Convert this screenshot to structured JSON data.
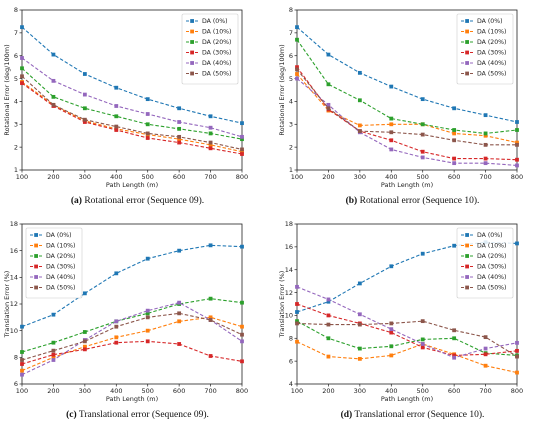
{
  "colors": {
    "DA (0%)": "#1f77b4",
    "DA (10%)": "#ff7f0e",
    "DA (20%)": "#2ca02c",
    "DA (30%)": "#d62728",
    "DA (40%)": "#9467bd",
    "DA (50%)": "#8c564b"
  },
  "captions": [
    {
      "label": "(a)",
      "text": "Rotational error (Sequence 09)."
    },
    {
      "label": "(b)",
      "text": "Rotational error (Sequence 10)."
    },
    {
      "label": "(c)",
      "text": "Translational error (Sequence 09)."
    },
    {
      "label": "(d)",
      "text": "Translational error (Sequence 10)."
    }
  ],
  "chart_data": [
    {
      "type": "line",
      "xlabel": "Path Length (m)",
      "ylabel": "Rotational Error (deg/100m)",
      "x": [
        100,
        200,
        300,
        400,
        500,
        600,
        700,
        800
      ],
      "xlim": [
        100,
        800
      ],
      "ylim": [
        1,
        8
      ],
      "yticks": [
        1,
        2,
        3,
        4,
        5,
        6,
        7,
        8
      ],
      "legend": "top-right",
      "grid": false,
      "series": [
        {
          "name": "DA (0%)",
          "values": [
            7.25,
            6.05,
            5.2,
            4.6,
            4.1,
            3.7,
            3.35,
            3.05
          ]
        },
        {
          "name": "DA (10%)",
          "values": [
            4.85,
            3.85,
            3.15,
            2.8,
            2.55,
            2.35,
            2.1,
            1.8
          ]
        },
        {
          "name": "DA (20%)",
          "values": [
            5.45,
            4.2,
            3.7,
            3.35,
            3.0,
            2.8,
            2.6,
            2.35
          ]
        },
        {
          "name": "DA (30%)",
          "values": [
            4.8,
            3.8,
            3.1,
            2.75,
            2.4,
            2.2,
            1.95,
            1.7
          ]
        },
        {
          "name": "DA (40%)",
          "values": [
            5.9,
            4.9,
            4.3,
            3.8,
            3.45,
            3.1,
            2.85,
            2.45
          ]
        },
        {
          "name": "DA (50%)",
          "values": [
            5.1,
            3.85,
            3.2,
            2.9,
            2.6,
            2.45,
            2.2,
            1.9
          ]
        }
      ]
    },
    {
      "type": "line",
      "xlabel": "Path Length (m)",
      "ylabel": "Rotational Error (deg/100m)",
      "x": [
        100,
        200,
        300,
        400,
        500,
        600,
        700,
        800
      ],
      "xlim": [
        100,
        800
      ],
      "ylim": [
        1,
        8
      ],
      "yticks": [
        1,
        2,
        3,
        4,
        5,
        6,
        7,
        8
      ],
      "legend": "top-right",
      "grid": false,
      "series": [
        {
          "name": "DA (0%)",
          "values": [
            7.25,
            6.05,
            5.25,
            4.65,
            4.1,
            3.7,
            3.4,
            3.1
          ]
        },
        {
          "name": "DA (10%)",
          "values": [
            5.2,
            3.6,
            2.95,
            3.0,
            3.0,
            2.6,
            2.5,
            2.2
          ]
        },
        {
          "name": "DA (20%)",
          "values": [
            6.7,
            4.75,
            4.05,
            3.25,
            3.0,
            2.75,
            2.6,
            2.75
          ]
        },
        {
          "name": "DA (30%)",
          "values": [
            5.5,
            3.65,
            2.7,
            2.3,
            1.8,
            1.5,
            1.5,
            1.45
          ]
        },
        {
          "name": "DA (40%)",
          "values": [
            5.0,
            3.85,
            2.65,
            1.9,
            1.55,
            1.3,
            1.3,
            1.2
          ]
        },
        {
          "name": "DA (50%)",
          "values": [
            5.4,
            3.7,
            2.7,
            2.65,
            2.55,
            2.3,
            2.1,
            2.1
          ]
        }
      ]
    },
    {
      "type": "line",
      "xlabel": "Path Length (m)",
      "ylabel": "Translation Error (%)",
      "x": [
        100,
        200,
        300,
        400,
        500,
        600,
        700,
        800
      ],
      "xlim": [
        100,
        800
      ],
      "ylim": [
        6,
        18
      ],
      "yticks": [
        6,
        8,
        10,
        12,
        14,
        16,
        18
      ],
      "legend": "top-left",
      "grid": false,
      "series": [
        {
          "name": "DA (0%)",
          "values": [
            10.3,
            11.2,
            12.8,
            14.3,
            15.4,
            16.0,
            16.4,
            16.3
          ]
        },
        {
          "name": "DA (10%)",
          "values": [
            7.0,
            8.0,
            8.8,
            9.5,
            10.0,
            10.7,
            11.0,
            10.3
          ]
        },
        {
          "name": "DA (20%)",
          "values": [
            8.4,
            9.1,
            9.9,
            10.7,
            11.3,
            12.0,
            12.4,
            12.1
          ]
        },
        {
          "name": "DA (30%)",
          "values": [
            7.5,
            8.2,
            8.6,
            9.1,
            9.2,
            9.0,
            8.1,
            7.7
          ]
        },
        {
          "name": "DA (40%)",
          "values": [
            6.7,
            7.8,
            9.3,
            10.7,
            11.5,
            12.1,
            10.8,
            9.2
          ]
        },
        {
          "name": "DA (50%)",
          "values": [
            7.8,
            8.5,
            9.2,
            10.3,
            11.0,
            11.3,
            10.8,
            9.7
          ]
        }
      ]
    },
    {
      "type": "line",
      "xlabel": "Path Length (m)",
      "ylabel": "Translation Error (%)",
      "x": [
        100,
        200,
        300,
        400,
        500,
        600,
        700,
        800
      ],
      "xlim": [
        100,
        800
      ],
      "ylim": [
        4,
        18
      ],
      "yticks": [
        4,
        6,
        8,
        10,
        12,
        14,
        16,
        18
      ],
      "legend": "top-right",
      "grid": false,
      "series": [
        {
          "name": "DA (0%)",
          "values": [
            10.3,
            11.2,
            12.8,
            14.3,
            15.4,
            16.1,
            16.4,
            16.3
          ]
        },
        {
          "name": "DA (10%)",
          "values": [
            7.7,
            6.4,
            6.2,
            6.5,
            7.5,
            6.6,
            5.6,
            5.0
          ]
        },
        {
          "name": "DA (20%)",
          "values": [
            9.5,
            8.0,
            7.1,
            7.3,
            7.9,
            8.0,
            6.7,
            6.5
          ]
        },
        {
          "name": "DA (30%)",
          "values": [
            11.0,
            10.0,
            9.3,
            8.5,
            7.2,
            6.5,
            6.6,
            6.9
          ]
        },
        {
          "name": "DA (40%)",
          "values": [
            12.5,
            11.4,
            10.1,
            8.8,
            7.5,
            6.3,
            7.1,
            7.6
          ]
        },
        {
          "name": "DA (50%)",
          "values": [
            9.3,
            9.2,
            9.2,
            9.3,
            9.5,
            8.7,
            8.1,
            6.4
          ]
        }
      ]
    }
  ]
}
